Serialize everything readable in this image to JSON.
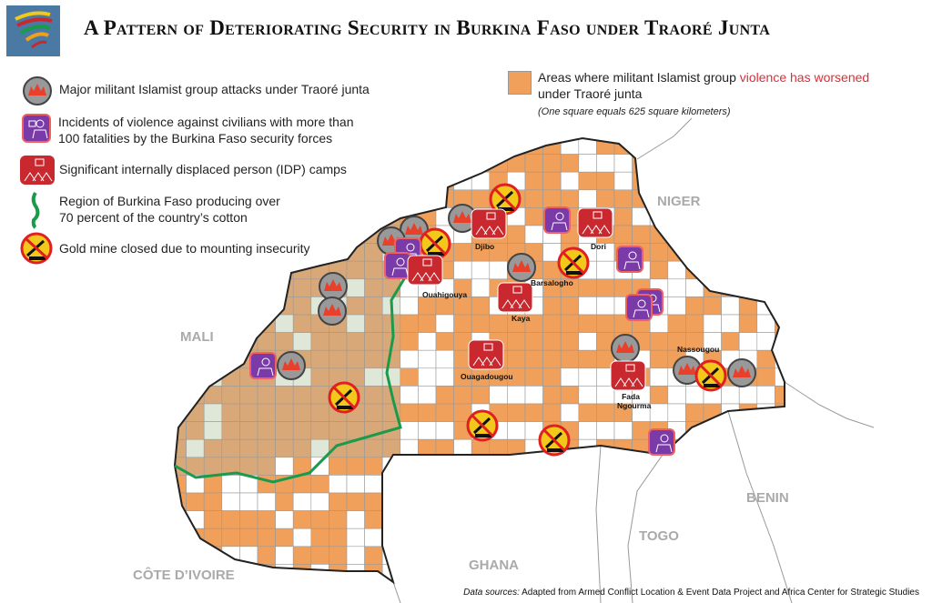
{
  "title": "A Pattern of Deteriorating Security in Burkina Faso under Traoré Junta",
  "legend": {
    "attacks": "Major militant Islamist group attacks under Traoré junta",
    "civilians_1": "Incidents of violence against civilians with more than",
    "civilians_2": "100 fatalities by the Burkina Faso security forces",
    "idp": "Significant internally displaced person (IDP) camps",
    "cotton_1": "Region of Burkina Faso producing over",
    "cotton_2": "70 percent of the country’s cotton",
    "gold": "Gold mine closed due to mounting insecurity",
    "areas_1": "Areas where militant Islamist group ",
    "areas_red": "violence has worsened",
    "areas_2": "under Traoré junta",
    "areas_note": "(One square equals 625 square kilometers)"
  },
  "countries": {
    "niger": "NIGER",
    "mali": "MALI",
    "benin": "BENIN",
    "togo": "TOGO",
    "ghana": "GHANA",
    "cote": "CÔTE D’IVOIRE"
  },
  "cities": {
    "djibo": "Djibo",
    "dori": "Dori",
    "ouahigouya": "Ouahigouya",
    "barsalogho": "Barsalogho",
    "kaya": "Kaya",
    "ouagadougou": "Ouagadougou",
    "nassougou": "Nassougou",
    "fada": "Fada",
    "ngourma": "Ngourma"
  },
  "source_label": "Data sources:",
  "source": " Adapted from Armed Conflict Location & Event Data Project and Africa Center for Strategic Studies",
  "colors": {
    "worsened": "#f0a05a",
    "cotton_region": "#d9a878",
    "cotton_line": "#1a9a4a",
    "idp": "#c8282e",
    "civilian": "#7a3aa8",
    "attack": "#999999",
    "gold": "#f2c81a"
  },
  "icons": [
    "attack-icon",
    "civilian-violence-icon",
    "idp-camp-icon",
    "cotton-line-icon",
    "gold-mine-closed-icon"
  ]
}
